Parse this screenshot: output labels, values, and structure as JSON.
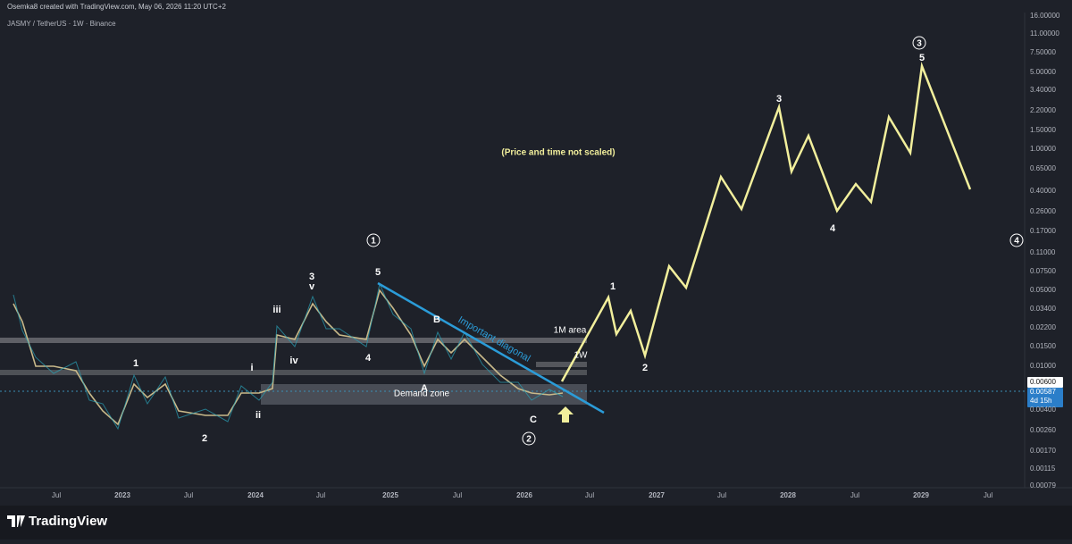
{
  "header": {
    "author_line": "Osemka8 created with TradingView.com, May 06, 2026 11:20 UTC+2",
    "symbol": "JASMY / TetherUS · 1W · Binance"
  },
  "price_axis": {
    "labels": [
      "16.00000",
      "11.00000",
      "7.50000",
      "5.00000",
      "3.40000",
      "2.20000",
      "1.50000",
      "1.00000",
      "0.65000",
      "0.40000",
      "0.26000",
      "0.17000",
      "0.11000",
      "0.07500",
      "0.05000",
      "0.03400",
      "0.02200",
      "0.01500",
      "0.01000",
      "0.00400",
      "0.00260",
      "0.00170",
      "0.00115",
      "0.00079"
    ],
    "marked_level": "0.00600",
    "last_price": "0.00587",
    "countdown": "4d 15h"
  },
  "time_axis": {
    "labels": [
      "Jul",
      "2023",
      "Jul",
      "2024",
      "Jul",
      "2025",
      "Jul",
      "2026",
      "Jul",
      "2027",
      "Jul",
      "2028",
      "Jul",
      "2029",
      "Jul"
    ]
  },
  "annotations": {
    "note": "(Price and time not scaled)",
    "diagonal": "Important diagonal",
    "demand_zone": "Demand zone",
    "month_area": "1M area",
    "week_area": "1W",
    "wave_labels": [
      "1",
      "5",
      "3",
      "v",
      "iii",
      "i",
      "ii",
      "iv",
      "4",
      "1",
      "2",
      "A",
      "B",
      "C",
      "2",
      "1",
      "2",
      "3",
      "4",
      "3",
      "5",
      "4"
    ]
  },
  "footer": {
    "brand": "TradingView"
  }
}
